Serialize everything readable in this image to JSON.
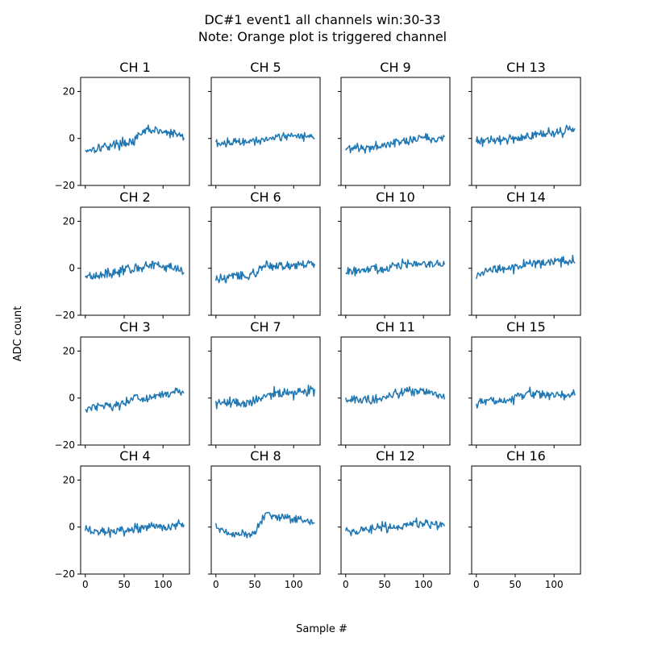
{
  "figure": {
    "title_line1": "DC#1 event1 all channels win:30-33",
    "title_line2": "Note: Orange plot is triggered channel",
    "xlabel": "Sample #",
    "ylabel": "ADC count"
  },
  "chart_data": {
    "type": "line",
    "layout": "4x4 grid, column-major channel order, shared axes",
    "x_ticks": [
      0,
      50,
      100
    ],
    "y_ticks": [
      -20,
      0,
      20
    ],
    "xlim": [
      -6,
      134
    ],
    "ylim": [
      -20,
      26
    ],
    "samples": 128,
    "line_color": "#1f77b4",
    "triggered_color": "#ff7f0e",
    "panels": [
      {
        "title": "CH 1",
        "baseline": [
          -5,
          -4,
          -3,
          -2,
          -1,
          4,
          3,
          2,
          1
        ],
        "noise": 1.0
      },
      {
        "title": "CH 2",
        "baseline": [
          -3,
          -3,
          -2,
          -1,
          0,
          1,
          1,
          0,
          0
        ],
        "noise": 1.0
      },
      {
        "title": "CH 3",
        "baseline": [
          -5,
          -3,
          -3,
          -3,
          0,
          0,
          1,
          2,
          3
        ],
        "noise": 1.0
      },
      {
        "title": "CH 4",
        "baseline": [
          -1,
          -2,
          -2,
          -2,
          -1,
          0,
          1,
          0,
          1
        ],
        "noise": 1.0
      },
      {
        "title": "CH 5",
        "baseline": [
          -2,
          -2,
          -1,
          -1,
          0,
          1,
          1,
          1,
          1
        ],
        "noise": 0.9
      },
      {
        "title": "CH 6",
        "baseline": [
          -5,
          -4,
          -3,
          -3,
          1,
          1,
          1,
          2,
          2
        ],
        "noise": 1.0
      },
      {
        "title": "CH 7",
        "baseline": [
          -2,
          -2,
          -2,
          -2,
          1,
          2,
          2,
          3,
          3
        ],
        "noise": 1.1
      },
      {
        "title": "CH 8",
        "baseline": [
          0,
          -3,
          -3,
          -4,
          5,
          5,
          4,
          3,
          2
        ],
        "noise": 0.9
      },
      {
        "title": "CH 9",
        "baseline": [
          -4,
          -4,
          -4,
          -3,
          -1,
          -1,
          0,
          0,
          0
        ],
        "noise": 1.0
      },
      {
        "title": "CH 10",
        "baseline": [
          -2,
          -1,
          0,
          -1,
          1,
          2,
          2,
          2,
          2
        ],
        "noise": 1.0
      },
      {
        "title": "CH 11",
        "baseline": [
          -1,
          -1,
          -1,
          0,
          2,
          3,
          3,
          2,
          1
        ],
        "noise": 1.0
      },
      {
        "title": "CH 12",
        "baseline": [
          -2,
          -2,
          -1,
          0,
          0,
          1,
          2,
          1,
          1
        ],
        "noise": 1.0
      },
      {
        "title": "CH 13",
        "baseline": [
          -1,
          -1,
          -1,
          0,
          1,
          2,
          2,
          3,
          4
        ],
        "noise": 1.0
      },
      {
        "title": "CH 14",
        "baseline": [
          -3,
          -1,
          0,
          0,
          2,
          2,
          3,
          3,
          3
        ],
        "noise": 1.0
      },
      {
        "title": "CH 15",
        "baseline": [
          -2,
          -1,
          -1,
          0,
          2,
          2,
          1,
          1,
          1
        ],
        "noise": 1.0
      },
      {
        "title": "CH 16",
        "baseline": [],
        "noise": 0
      }
    ]
  }
}
